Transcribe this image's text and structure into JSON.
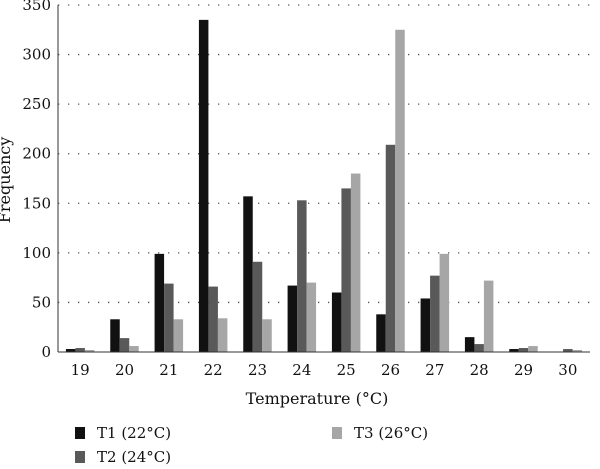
{
  "chart_data": {
    "type": "bar",
    "xlabel": "Temperature (°C)",
    "ylabel": "Frequency",
    "ylim": [
      0,
      350
    ],
    "yticks": [
      0,
      50,
      100,
      150,
      200,
      250,
      300,
      350
    ],
    "grid": "horizontal dotted",
    "legend_position": "bottom",
    "categories": [
      "19",
      "20",
      "21",
      "22",
      "23",
      "24",
      "25",
      "26",
      "27",
      "28",
      "29",
      "30"
    ],
    "series": [
      {
        "name": "T1 (22°C)",
        "color": "#111111",
        "values": [
          3,
          33,
          99,
          335,
          157,
          67,
          60,
          38,
          54,
          15,
          3,
          0
        ]
      },
      {
        "name": "T2 (24°C)",
        "color": "#595959",
        "values": [
          4,
          14,
          69,
          66,
          91,
          153,
          165,
          209,
          77,
          8,
          4,
          3
        ]
      },
      {
        "name": "T3 (26°C)",
        "color": "#a6a6a6",
        "values": [
          2,
          6,
          33,
          34,
          33,
          70,
          180,
          325,
          99,
          72,
          6,
          2
        ]
      }
    ]
  }
}
